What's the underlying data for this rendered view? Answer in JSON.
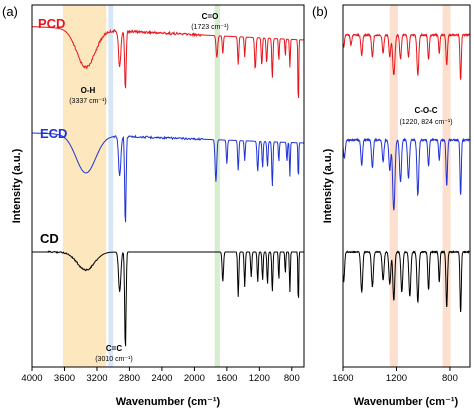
{
  "chart_data": [
    {
      "type": "line",
      "panel_label": "(a)",
      "xlabel": "Wavenumber (cm⁻¹)",
      "ylabel": "Intensity (a.u.)",
      "xlim": [
        4000,
        650
      ],
      "x_reversed": true,
      "x_ticks": [
        "4000",
        "3600",
        "3200",
        "2800",
        "2400",
        "2000",
        "1600",
        "1200",
        "800"
      ],
      "x_tick_values": [
        4000,
        3600,
        3200,
        2800,
        2400,
        2000,
        1600,
        1200,
        800
      ],
      "series": [
        {
          "name": "PCD",
          "color": "#e8141b"
        },
        {
          "name": "ECD",
          "color": "#1f32d6"
        },
        {
          "name": "CD",
          "color": "#000000"
        }
      ],
      "highlight_bands": [
        {
          "x0": 3620,
          "x1": 3085,
          "color": "#fbe3b3"
        },
        {
          "x0": 3060,
          "x1": 3000,
          "color": "#cfe2f6"
        },
        {
          "x0": 1750,
          "x1": 1685,
          "color": "#cfeac6"
        }
      ],
      "annotations": [
        {
          "label": "O-H",
          "value": "(3337 cm⁻¹)"
        },
        {
          "label": "C=O",
          "value": "(1723 cm⁻¹)"
        },
        {
          "label": "C=C",
          "value": "(3010 cm⁻¹)"
        }
      ],
      "grid": false
    },
    {
      "type": "line",
      "panel_label": "(b)",
      "xlabel": "Wavenumber (cm⁻¹)",
      "ylabel": "Intensity (a.u.)",
      "xlim": [
        1600,
        650
      ],
      "x_reversed": true,
      "x_ticks": [
        "1600",
        "1200",
        "800"
      ],
      "x_tick_values": [
        1600,
        1200,
        800
      ],
      "series": [
        {
          "name": "PCD",
          "color": "#e8141b"
        },
        {
          "name": "ECD",
          "color": "#1f32d6"
        },
        {
          "name": "CD",
          "color": "#000000"
        }
      ],
      "highlight_bands": [
        {
          "x0": 1250,
          "x1": 1190,
          "color": "#fbd9c5"
        },
        {
          "x0": 855,
          "x1": 795,
          "color": "#fbd9c5"
        }
      ],
      "annotations": [
        {
          "label": "C-O-C",
          "value": "(1220, 824 cm⁻¹)"
        }
      ],
      "grid": false
    }
  ]
}
